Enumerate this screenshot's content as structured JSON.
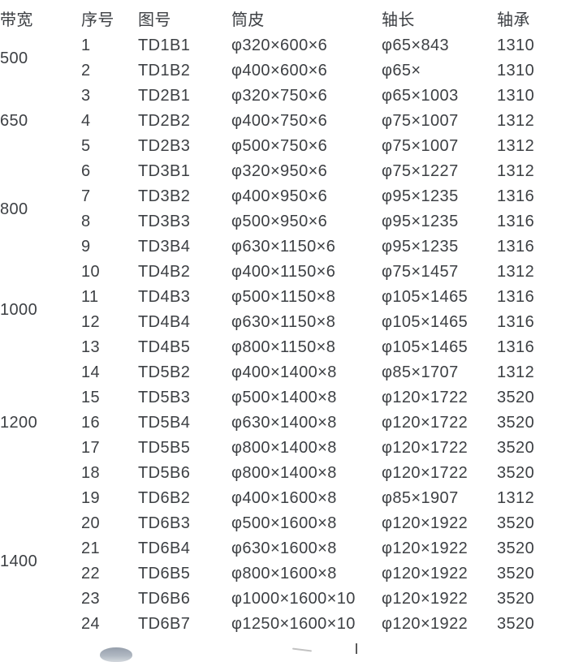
{
  "page": {
    "background_color": "#ffffff",
    "text_color": "#3d4044"
  },
  "table": {
    "headers": [
      "带宽",
      "序号",
      "图号",
      "筒皮",
      "轴长",
      "轴承"
    ],
    "groups": [
      {
        "band_width": "500",
        "rows": [
          {
            "no": "1",
            "code": "TD1B1",
            "shell": "φ320×600×6",
            "shaft": "φ65×843",
            "bearing": "1310"
          },
          {
            "no": "2",
            "code": "TD1B2",
            "shell": "φ400×600×6",
            "shaft": "φ65×",
            "bearing": "1310"
          }
        ]
      },
      {
        "band_width": "650",
        "rows": [
          {
            "no": "3",
            "code": "TD2B1",
            "shell": "φ320×750×6",
            "shaft": "φ65×1003",
            "bearing": "1310"
          },
          {
            "no": "4",
            "code": "TD2B2",
            "shell": "φ400×750×6",
            "shaft": "φ75×1007",
            "bearing": "1312"
          },
          {
            "no": "5",
            "code": "TD2B3",
            "shell": "φ500×750×6",
            "shaft": "φ75×1007",
            "bearing": "1312"
          }
        ]
      },
      {
        "band_width": "800",
        "rows": [
          {
            "no": "6",
            "code": "TD3B1",
            "shell": "φ320×950×6",
            "shaft": "φ75×1227",
            "bearing": "1312"
          },
          {
            "no": "7",
            "code": "TD3B2",
            "shell": "φ400×950×6",
            "shaft": "φ95×1235",
            "bearing": "1316"
          },
          {
            "no": "8",
            "code": "TD3B3",
            "shell": "φ500×950×6",
            "shaft": "φ95×1235",
            "bearing": "1316"
          },
          {
            "no": "9",
            "code": "TD3B4",
            "shell": "φ630×1150×6",
            "shaft": "φ95×1235",
            "bearing": "1316"
          }
        ]
      },
      {
        "band_width": "1000",
        "rows": [
          {
            "no": "10",
            "code": "TD4B2",
            "shell": "φ400×1150×6",
            "shaft": "φ75×1457",
            "bearing": "1312"
          },
          {
            "no": "11",
            "code": "TD4B3",
            "shell": "φ500×1150×8",
            "shaft": "φ105×1465",
            "bearing": "1316"
          },
          {
            "no": "12",
            "code": "TD4B4",
            "shell": "φ630×1150×8",
            "shaft": "φ105×1465",
            "bearing": "1316"
          },
          {
            "no": "13",
            "code": "TD4B5",
            "shell": "φ800×1150×8",
            "shaft": "φ105×1465",
            "bearing": "1316"
          }
        ]
      },
      {
        "band_width": "1200",
        "rows": [
          {
            "no": "14",
            "code": "TD5B2",
            "shell": "φ400×1400×8",
            "shaft": "φ85×1707",
            "bearing": "1312"
          },
          {
            "no": "15",
            "code": "TD5B3",
            "shell": "φ500×1400×8",
            "shaft": "φ120×1722",
            "bearing": "3520"
          },
          {
            "no": "16",
            "code": "TD5B4",
            "shell": "φ630×1400×8",
            "shaft": "φ120×1722",
            "bearing": "3520"
          },
          {
            "no": "17",
            "code": "TD5B5",
            "shell": "φ800×1400×8",
            "shaft": "φ120×1722",
            "bearing": "3520"
          },
          {
            "no": "18",
            "code": "TD5B6",
            "shell": "φ800×1400×8",
            "shaft": "φ120×1722",
            "bearing": "3520"
          }
        ]
      },
      {
        "band_width": "1400",
        "rows": [
          {
            "no": "19",
            "code": "TD6B2",
            "shell": "φ400×1600×8",
            "shaft": "φ85×1907",
            "bearing": "1312"
          },
          {
            "no": "20",
            "code": "TD6B3",
            "shell": "φ500×1600×8",
            "shaft": "φ120×1922",
            "bearing": "3520"
          },
          {
            "no": "21",
            "code": "TD6B4",
            "shell": "φ630×1600×8",
            "shaft": "φ120×1922",
            "bearing": "3520"
          },
          {
            "no": "22",
            "code": "TD6B5",
            "shell": "φ800×1600×8",
            "shaft": "φ120×1922",
            "bearing": "3520"
          },
          {
            "no": "23",
            "code": "TD6B6",
            "shell": "φ1000×1600×10",
            "shaft": "φ120×1922",
            "bearing": "3520"
          },
          {
            "no": "24",
            "code": "TD6B7",
            "shell": "φ1250×1600×10",
            "shaft": "φ120×1922",
            "bearing": "3520"
          }
        ]
      }
    ]
  },
  "fragments": {
    "blob_color": "#8a94a2",
    "vline_color": "#5a5a5a",
    "tick_color": "#c2c2c2"
  }
}
